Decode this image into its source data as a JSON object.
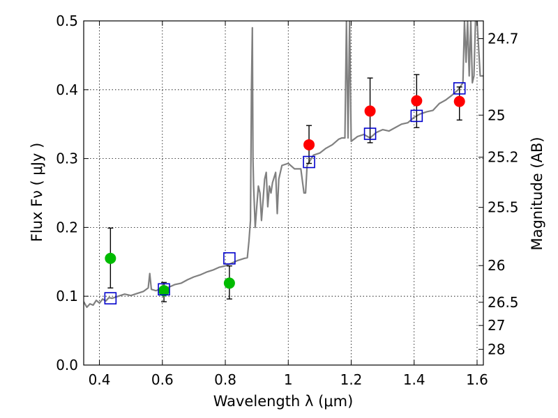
{
  "chart_data": {
    "type": "scatter",
    "xlabel": "Wavelength  λ (μm)",
    "ylabel": "Flux  Fν  ( μJy )",
    "ylabel_right": "Magnitude (AB)",
    "xlim": [
      0.35,
      1.62
    ],
    "ylim": [
      0,
      0.5
    ],
    "grid": true,
    "x_ticks": [
      0.4,
      0.6,
      0.8,
      1.0,
      1.2,
      1.4,
      1.6
    ],
    "x_tick_labels": [
      "0.4",
      "0.6",
      "0.8",
      "1",
      "1.2",
      "1.4",
      "1.6"
    ],
    "y_ticks": [
      0.0,
      0.1,
      0.2,
      0.3,
      0.4,
      0.5
    ],
    "y_tick_labels": [
      "0.0",
      "0.1",
      "0.2",
      "0.3",
      "0.4",
      "0.5"
    ],
    "right_ticks": [
      {
        "flux": 0.4742,
        "label": "24.7"
      },
      {
        "flux": 0.3631,
        "label": "25"
      },
      {
        "flux": 0.302,
        "label": "25.2"
      },
      {
        "flux": 0.2291,
        "label": "25.5"
      },
      {
        "flux": 0.1445,
        "label": "26"
      },
      {
        "flux": 0.0912,
        "label": "26.5"
      },
      {
        "flux": 0.0575,
        "label": "27"
      },
      {
        "flux": 0.0229,
        "label": "28"
      }
    ],
    "series": [
      {
        "type": "line",
        "color": "#808080",
        "x": [
          0.35,
          0.36,
          0.37,
          0.38,
          0.39,
          0.4,
          0.41,
          0.42,
          0.43,
          0.44,
          0.46,
          0.48,
          0.5,
          0.52,
          0.54,
          0.555,
          0.56,
          0.565,
          0.58,
          0.6,
          0.62,
          0.64,
          0.66,
          0.68,
          0.7,
          0.72,
          0.74,
          0.76,
          0.78,
          0.8,
          0.82,
          0.84,
          0.86,
          0.87,
          0.875,
          0.88,
          0.883,
          0.886,
          0.888,
          0.89,
          0.895,
          0.9,
          0.905,
          0.91,
          0.915,
          0.92,
          0.925,
          0.93,
          0.935,
          0.94,
          0.945,
          0.95,
          0.96,
          0.965,
          0.97,
          0.98,
          1.0,
          1.02,
          1.04,
          1.05,
          1.055,
          1.06,
          1.08,
          1.1,
          1.12,
          1.14,
          1.16,
          1.17,
          1.18,
          1.185,
          1.19,
          1.195,
          1.2,
          1.22,
          1.24,
          1.26,
          1.28,
          1.3,
          1.32,
          1.34,
          1.36,
          1.38,
          1.4,
          1.42,
          1.44,
          1.46,
          1.48,
          1.5,
          1.52,
          1.54,
          1.555,
          1.56,
          1.565,
          1.57,
          1.575,
          1.58,
          1.585,
          1.59,
          1.595,
          1.6,
          1.61,
          1.62
        ],
        "y": [
          0.092,
          0.084,
          0.089,
          0.087,
          0.094,
          0.09,
          0.096,
          0.093,
          0.098,
          0.097,
          0.1,
          0.103,
          0.101,
          0.104,
          0.107,
          0.112,
          0.133,
          0.11,
          0.108,
          0.112,
          0.113,
          0.117,
          0.119,
          0.124,
          0.128,
          0.131,
          0.135,
          0.138,
          0.142,
          0.144,
          0.148,
          0.152,
          0.155,
          0.156,
          0.18,
          0.21,
          0.4,
          0.49,
          0.3,
          0.26,
          0.2,
          0.23,
          0.26,
          0.25,
          0.21,
          0.24,
          0.27,
          0.28,
          0.23,
          0.26,
          0.25,
          0.265,
          0.28,
          0.22,
          0.27,
          0.29,
          0.293,
          0.285,
          0.285,
          0.25,
          0.25,
          0.29,
          0.305,
          0.308,
          0.315,
          0.32,
          0.328,
          0.33,
          0.33,
          0.5,
          0.33,
          0.5,
          0.325,
          0.332,
          0.335,
          0.33,
          0.338,
          0.342,
          0.34,
          0.345,
          0.35,
          0.352,
          0.36,
          0.365,
          0.368,
          0.37,
          0.38,
          0.385,
          0.392,
          0.4,
          0.41,
          0.5,
          0.44,
          0.5,
          0.42,
          0.5,
          0.41,
          0.42,
          0.5,
          0.5,
          0.42,
          0.42
        ]
      },
      {
        "type": "scatter",
        "marker": "circle",
        "color": "#00bb00",
        "x": [
          0.435,
          0.605,
          0.813
        ],
        "y": [
          0.155,
          0.108,
          0.119
        ],
        "yerr_low": [
          0.112,
          0.092,
          0.096
        ],
        "yerr_high": [
          0.199,
          0.12,
          0.144
        ]
      },
      {
        "type": "scatter",
        "marker": "circle",
        "color": "#ff0000",
        "x": [
          1.066,
          1.26,
          1.408,
          1.544
        ],
        "y": [
          0.32,
          0.369,
          0.384,
          0.383
        ],
        "yerr_low": [
          0.293,
          0.323,
          0.345,
          0.356
        ],
        "yerr_high": [
          0.348,
          0.417,
          0.422,
          0.404
        ]
      },
      {
        "type": "scatter",
        "marker": "square-open",
        "color": "#0000cc",
        "x": [
          0.435,
          0.605,
          0.813,
          1.066,
          1.26,
          1.408,
          1.544
        ],
        "y": [
          0.097,
          0.11,
          0.155,
          0.295,
          0.336,
          0.362,
          0.402
        ]
      }
    ]
  }
}
